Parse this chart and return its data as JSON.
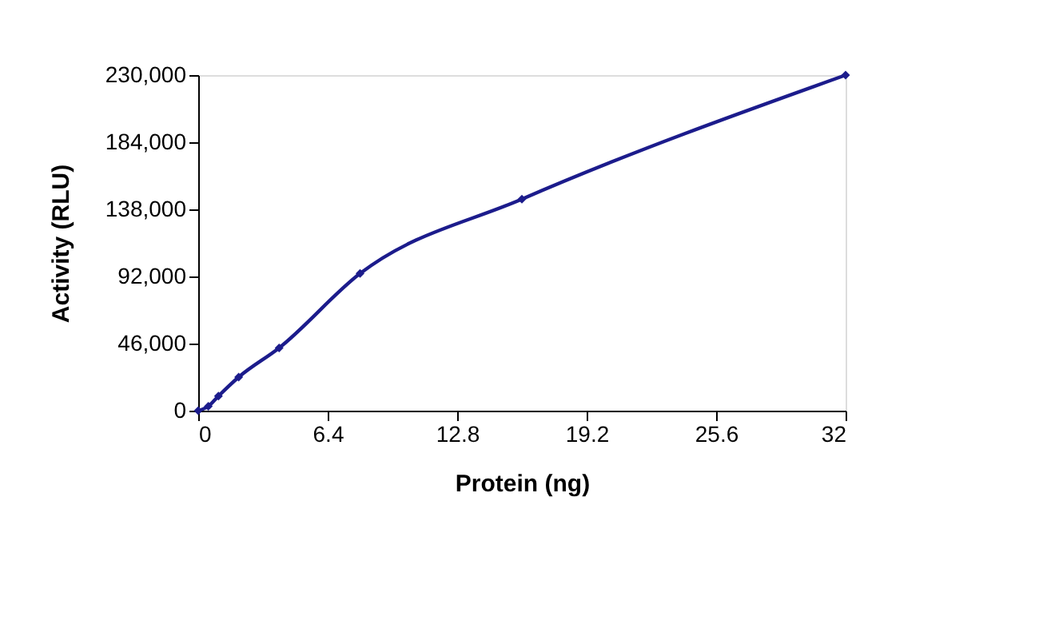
{
  "chart_data": {
    "type": "line",
    "xlabel": "Protein (ng)",
    "ylabel": "Activity (RLU)",
    "x": [
      0,
      0.5,
      1,
      2,
      4,
      8,
      16,
      32
    ],
    "series": [
      {
        "color": "#1c1c8c",
        "values": [
          0,
          3000,
          10000,
          23000,
          43000,
          94000,
          145000,
          230000
        ]
      }
    ],
    "xlim": [
      0,
      32
    ],
    "xticks": [
      0,
      6.4,
      12.8,
      19.2,
      25.6,
      32
    ],
    "ylim": [
      0,
      230000
    ],
    "yticks": [
      {
        "value": 0,
        "label": "0"
      },
      {
        "value": 46000,
        "label": "46,000"
      },
      {
        "value": 92000,
        "label": "92,000"
      },
      {
        "value": 138000,
        "label": "138,000"
      },
      {
        "value": 184000,
        "label": "184,000"
      },
      {
        "value": 230000,
        "label": "230,000"
      }
    ],
    "grid": false,
    "marker": "diamond",
    "line_style": "solid"
  }
}
